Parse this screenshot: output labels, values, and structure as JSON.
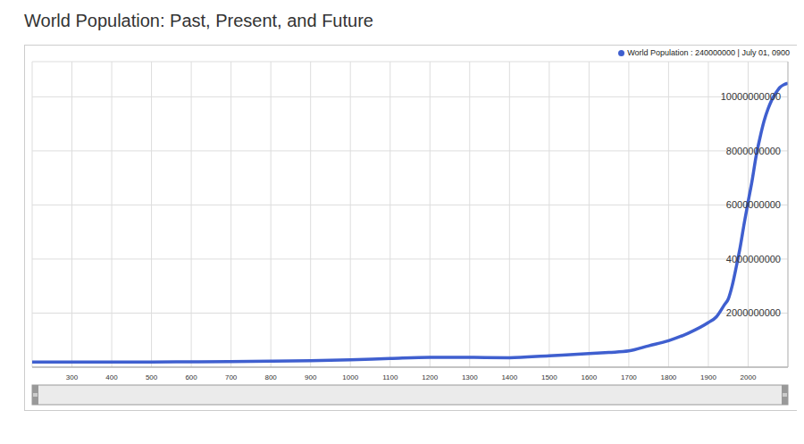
{
  "chart_data": {
    "type": "line",
    "title": "World Population: Past, Present, and Future",
    "annotation": "World Population : 240000000 | July 01, 0900",
    "x": [
      200,
      300,
      400,
      500,
      600,
      700,
      800,
      900,
      1000,
      1100,
      1200,
      1300,
      1400,
      1500,
      1600,
      1650,
      1700,
      1750,
      1800,
      1850,
      1900,
      1920,
      1940,
      1950,
      1960,
      1970,
      1980,
      1990,
      2000,
      2010,
      2020,
      2030,
      2040,
      2050,
      2060,
      2070,
      2080,
      2090,
      2100
    ],
    "values": [
      190000000,
      190000000,
      190000000,
      190000000,
      200000000,
      207000000,
      220000000,
      240000000,
      275000000,
      320000000,
      360000000,
      360000000,
      350000000,
      425000000,
      500000000,
      545000000,
      600000000,
      790000000,
      980000000,
      1260000000,
      1650000000,
      1860000000,
      2300000000,
      2520000000,
      3020000000,
      3700000000,
      4440000000,
      5310000000,
      6120000000,
      6900000000,
      7800000000,
      8500000000,
      9100000000,
      9550000000,
      9900000000,
      10150000000,
      10350000000,
      10450000000,
      10500000000
    ],
    "color": "#3f5fcf",
    "xlim": [
      200,
      2100
    ],
    "xticks": [
      300,
      400,
      500,
      600,
      700,
      800,
      900,
      1000,
      1100,
      1200,
      1300,
      1400,
      1500,
      1600,
      1700,
      1800,
      1900,
      2000
    ],
    "ylim": [
      0,
      11300000000
    ],
    "yticks": [
      2000000000,
      4000000000,
      6000000000,
      8000000000,
      10000000000
    ],
    "grid": true
  }
}
